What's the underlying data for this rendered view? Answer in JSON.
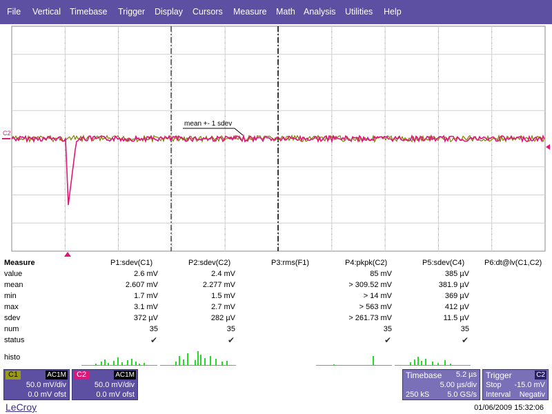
{
  "menu": [
    "File",
    "Vertical",
    "Timebase",
    "Trigger",
    "Display",
    "Cursors",
    "Measure",
    "Math",
    "Analysis",
    "Utilities",
    "Help"
  ],
  "grid": {
    "channel_marker": "C2",
    "annotation": "mean +- 1 sdev",
    "colors": {
      "c1": "#808000",
      "c2": "#e0157a",
      "grid": "#999999",
      "marker": "#e0157a"
    }
  },
  "measure": {
    "title": "Measure",
    "row_labels": [
      "value",
      "mean",
      "min",
      "max",
      "sdev",
      "num",
      "status"
    ],
    "histo_label": "histo",
    "params": [
      {
        "header": "P1:sdev(C1)",
        "values": [
          "2.6 mV",
          "2.607 mV",
          "1.7 mV",
          "3.1 mV",
          "372 µV",
          "35"
        ],
        "status": "✔"
      },
      {
        "header": "P2:sdev(C2)",
        "values": [
          "2.4 mV",
          "2.277 mV",
          "1.5 mV",
          "2.7 mV",
          "282 µV",
          "35"
        ],
        "status": "✔"
      },
      {
        "header": "P3:rms(F1)",
        "values": [
          "",
          "",
          "",
          "",
          "",
          ""
        ],
        "status": ""
      },
      {
        "header": "P4:pkpk(C2)",
        "values": [
          "85 mV",
          "> 309.52 mV",
          "> 14 mV",
          "> 563 mV",
          "> 261.73 mV",
          "35"
        ],
        "status": "✔"
      },
      {
        "header": "P5:sdev(C4)",
        "values": [
          "385 µV",
          "381.9 µV",
          "369 µV",
          "412 µV",
          "11.5 µV",
          "35"
        ],
        "status": "✔"
      },
      {
        "header": "P6:dt@lv(C1,C2)",
        "values": [
          "",
          "",
          "",
          "",
          "",
          ""
        ],
        "status": ""
      }
    ],
    "histo_color": "#22dd22"
  },
  "channels": [
    {
      "name": "C1",
      "coupling": "AC1M",
      "vdiv": "50.0 mV/div",
      "offset": "0.0 mV ofst",
      "tag_color": "#9a9a1a"
    },
    {
      "name": "C2",
      "coupling": "AC1M",
      "vdiv": "50.0 mV/div",
      "offset": "0.0 mV ofst",
      "tag_color": "#e0157a"
    }
  ],
  "timebase": {
    "label": "Timebase",
    "delay": "5.2 µs",
    "tdiv": "5.00 µs/div",
    "samples": "250 kS",
    "rate": "5.0 GS/s"
  },
  "trigger": {
    "label": "Trigger",
    "source": "C2",
    "mode": "Stop",
    "level": "-15.0 mV",
    "type": "Interval",
    "slope": "Negativ"
  },
  "brand": "LeCroy",
  "datetime": "01/06/2009 15:32:06"
}
